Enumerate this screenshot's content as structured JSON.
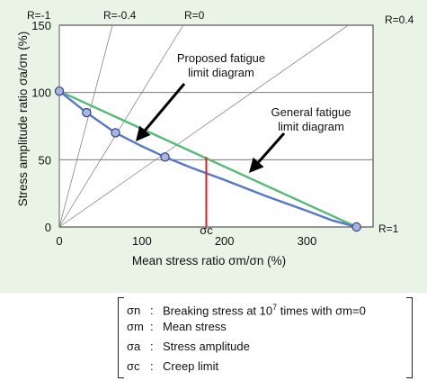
{
  "chart_data": {
    "type": "line",
    "xlabel": "Mean stress ratio σm/σn (%)",
    "ylabel": "Stress amplitude ratio σa/σn (%)",
    "x_ticks": [
      "0",
      "100",
      "200",
      "300"
    ],
    "y_ticks": [
      "0",
      "50",
      "100",
      "150"
    ],
    "xlim": [
      0,
      380
    ],
    "ylim": [
      0,
      150
    ],
    "grid": "horizontal",
    "r_lines": [
      {
        "label": "R=-1",
        "ratio": "infinite"
      },
      {
        "label": "R=-0.4",
        "ratio": 2.333
      },
      {
        "label": "R=0",
        "ratio": 1
      },
      {
        "label": "R=0.4",
        "ratio": 0.4286
      },
      {
        "label": "R=1",
        "ratio": 0
      }
    ],
    "series": [
      {
        "name": "General fatigue limit diagram",
        "color": "#55bb77",
        "x": [
          0,
          360
        ],
        "y": [
          101,
          0
        ]
      },
      {
        "name": "Proposed fatigue limit diagram",
        "color": "#5577cc",
        "x": [
          0,
          33,
          68,
          100,
          128,
          160,
          200,
          250,
          300,
          330,
          360
        ],
        "y": [
          101,
          85,
          70,
          60,
          52,
          44,
          35,
          23,
          12,
          5,
          0
        ],
        "markers_x": [
          0,
          33,
          68,
          128,
          360
        ],
        "markers_y": [
          101,
          85,
          70,
          52,
          0
        ]
      }
    ],
    "creep_limit": {
      "label": "σc",
      "x": 178,
      "y_top": 52,
      "color": "#e02020"
    },
    "annotations": [
      {
        "text": "Proposed fatigue limit diagram",
        "lines": [
          "Proposed fatigue",
          "limit diagram"
        ]
      },
      {
        "text": "General fatigue limit diagram",
        "lines": [
          "General fatigue",
          "limit diagram"
        ]
      }
    ]
  },
  "legend": [
    {
      "symbol": "σn",
      "text": "Breaking stress at 10",
      "sup": "7",
      "text_after": " times with σm=0"
    },
    {
      "symbol": "σm",
      "text": "Mean stress",
      "sup": "",
      "text_after": ""
    },
    {
      "symbol": "σa",
      "text": "Stress amplitude",
      "sup": "",
      "text_after": ""
    },
    {
      "symbol": "σc",
      "text": "Creep limit",
      "sup": "",
      "text_after": ""
    }
  ],
  "colon": ":"
}
